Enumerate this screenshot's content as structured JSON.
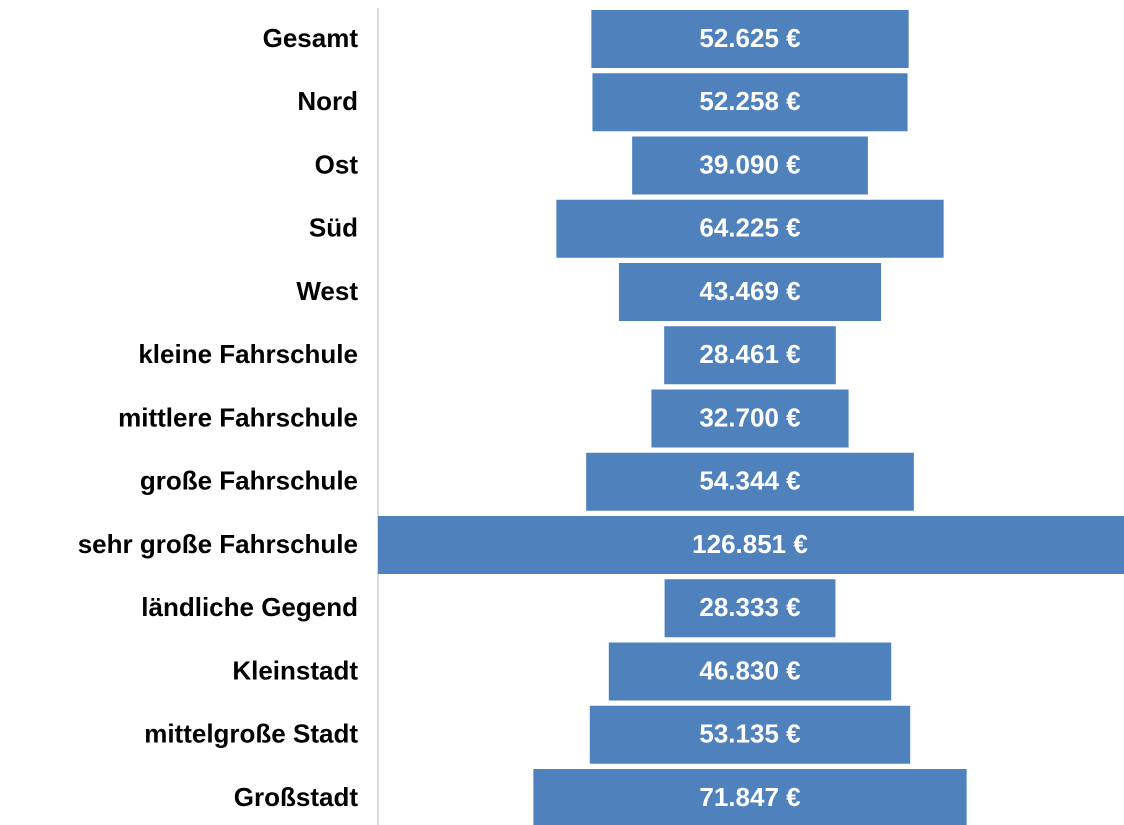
{
  "chart_data": {
    "type": "funnel",
    "categories": [
      "Gesamt",
      "Nord",
      "Ost",
      "Süd",
      "West",
      "kleine Fahrschule",
      "mittlere Fahrschule",
      "große Fahrschule",
      "sehr große Fahrschule",
      "ländliche Gegend",
      "Kleinstadt",
      "mittelgroße Stadt",
      "Großstadt"
    ],
    "values": [
      52625,
      52258,
      39090,
      64225,
      43469,
      28461,
      32700,
      54344,
      126851,
      28333,
      46830,
      53135,
      71847
    ],
    "value_labels": [
      "52.625 €",
      "52.258 €",
      "39.090 €",
      "64.225 €",
      "43.469 €",
      "28.461 €",
      "32.700 €",
      "54.344 €",
      "126.851 €",
      "28.333 €",
      "46.830 €",
      "53.135 €",
      "71.847 €"
    ],
    "color": "#4f81bd"
  }
}
